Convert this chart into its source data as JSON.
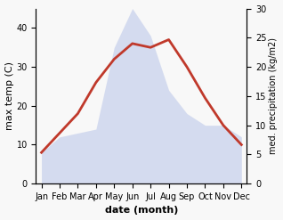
{
  "months": [
    "Jan",
    "Feb",
    "Mar",
    "Apr",
    "May",
    "Jun",
    "Jul",
    "Aug",
    "Sep",
    "Oct",
    "Nov",
    "Dec"
  ],
  "temperature": [
    8,
    13,
    18,
    26,
    32,
    36,
    35,
    37,
    30,
    22,
    15,
    10
  ],
  "precipitation_left_scale": [
    8,
    12,
    13,
    14,
    35,
    45,
    38,
    24,
    18,
    15,
    15,
    12
  ],
  "temp_color": "#c0392b",
  "precip_fill_color": "#b8c4e8",
  "precip_fill_alpha": 0.55,
  "left_ylim": [
    0,
    45
  ],
  "right_ylim": [
    0,
    30
  ],
  "left_yticks": [
    0,
    10,
    20,
    30,
    40
  ],
  "right_yticks": [
    0,
    5,
    10,
    15,
    20,
    25,
    30
  ],
  "xlabel": "date (month)",
  "ylabel_left": "max temp (C)",
  "ylabel_right": "med. precipitation (kg/m2)",
  "label_fontsize": 8,
  "tick_fontsize": 7,
  "linewidth": 2.0
}
